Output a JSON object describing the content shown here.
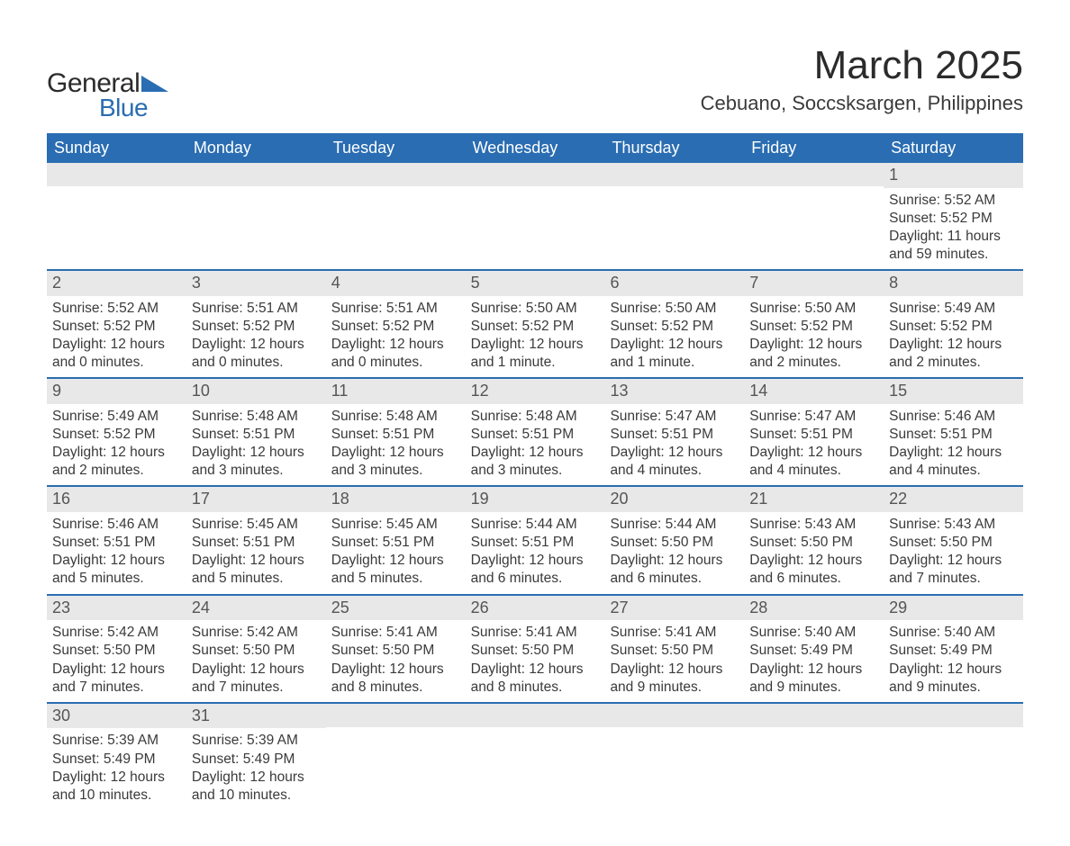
{
  "logo": {
    "text_general": "General",
    "text_blue": "Blue",
    "triangle_color": "#2a6db2"
  },
  "header": {
    "title": "March 2025",
    "subtitle": "Cebuano, Soccsksargen, Philippines"
  },
  "calendar": {
    "header_bg": "#2a6db2",
    "header_fg": "#ffffff",
    "row_border": "#2a6db2",
    "daynum_bg": "#e8e8e8",
    "text_color": "#3a3a3a",
    "day_labels": [
      "Sunday",
      "Monday",
      "Tuesday",
      "Wednesday",
      "Thursday",
      "Friday",
      "Saturday"
    ],
    "weeks": [
      [
        {
          "d": "",
          "sr": "",
          "ss": "",
          "dl": ""
        },
        {
          "d": "",
          "sr": "",
          "ss": "",
          "dl": ""
        },
        {
          "d": "",
          "sr": "",
          "ss": "",
          "dl": ""
        },
        {
          "d": "",
          "sr": "",
          "ss": "",
          "dl": ""
        },
        {
          "d": "",
          "sr": "",
          "ss": "",
          "dl": ""
        },
        {
          "d": "",
          "sr": "",
          "ss": "",
          "dl": ""
        },
        {
          "d": "1",
          "sr": "5:52 AM",
          "ss": "5:52 PM",
          "dl": "11 hours and 59 minutes."
        }
      ],
      [
        {
          "d": "2",
          "sr": "5:52 AM",
          "ss": "5:52 PM",
          "dl": "12 hours and 0 minutes."
        },
        {
          "d": "3",
          "sr": "5:51 AM",
          "ss": "5:52 PM",
          "dl": "12 hours and 0 minutes."
        },
        {
          "d": "4",
          "sr": "5:51 AM",
          "ss": "5:52 PM",
          "dl": "12 hours and 0 minutes."
        },
        {
          "d": "5",
          "sr": "5:50 AM",
          "ss": "5:52 PM",
          "dl": "12 hours and 1 minute."
        },
        {
          "d": "6",
          "sr": "5:50 AM",
          "ss": "5:52 PM",
          "dl": "12 hours and 1 minute."
        },
        {
          "d": "7",
          "sr": "5:50 AM",
          "ss": "5:52 PM",
          "dl": "12 hours and 2 minutes."
        },
        {
          "d": "8",
          "sr": "5:49 AM",
          "ss": "5:52 PM",
          "dl": "12 hours and 2 minutes."
        }
      ],
      [
        {
          "d": "9",
          "sr": "5:49 AM",
          "ss": "5:52 PM",
          "dl": "12 hours and 2 minutes."
        },
        {
          "d": "10",
          "sr": "5:48 AM",
          "ss": "5:51 PM",
          "dl": "12 hours and 3 minutes."
        },
        {
          "d": "11",
          "sr": "5:48 AM",
          "ss": "5:51 PM",
          "dl": "12 hours and 3 minutes."
        },
        {
          "d": "12",
          "sr": "5:48 AM",
          "ss": "5:51 PM",
          "dl": "12 hours and 3 minutes."
        },
        {
          "d": "13",
          "sr": "5:47 AM",
          "ss": "5:51 PM",
          "dl": "12 hours and 4 minutes."
        },
        {
          "d": "14",
          "sr": "5:47 AM",
          "ss": "5:51 PM",
          "dl": "12 hours and 4 minutes."
        },
        {
          "d": "15",
          "sr": "5:46 AM",
          "ss": "5:51 PM",
          "dl": "12 hours and 4 minutes."
        }
      ],
      [
        {
          "d": "16",
          "sr": "5:46 AM",
          "ss": "5:51 PM",
          "dl": "12 hours and 5 minutes."
        },
        {
          "d": "17",
          "sr": "5:45 AM",
          "ss": "5:51 PM",
          "dl": "12 hours and 5 minutes."
        },
        {
          "d": "18",
          "sr": "5:45 AM",
          "ss": "5:51 PM",
          "dl": "12 hours and 5 minutes."
        },
        {
          "d": "19",
          "sr": "5:44 AM",
          "ss": "5:51 PM",
          "dl": "12 hours and 6 minutes."
        },
        {
          "d": "20",
          "sr": "5:44 AM",
          "ss": "5:50 PM",
          "dl": "12 hours and 6 minutes."
        },
        {
          "d": "21",
          "sr": "5:43 AM",
          "ss": "5:50 PM",
          "dl": "12 hours and 6 minutes."
        },
        {
          "d": "22",
          "sr": "5:43 AM",
          "ss": "5:50 PM",
          "dl": "12 hours and 7 minutes."
        }
      ],
      [
        {
          "d": "23",
          "sr": "5:42 AM",
          "ss": "5:50 PM",
          "dl": "12 hours and 7 minutes."
        },
        {
          "d": "24",
          "sr": "5:42 AM",
          "ss": "5:50 PM",
          "dl": "12 hours and 7 minutes."
        },
        {
          "d": "25",
          "sr": "5:41 AM",
          "ss": "5:50 PM",
          "dl": "12 hours and 8 minutes."
        },
        {
          "d": "26",
          "sr": "5:41 AM",
          "ss": "5:50 PM",
          "dl": "12 hours and 8 minutes."
        },
        {
          "d": "27",
          "sr": "5:41 AM",
          "ss": "5:50 PM",
          "dl": "12 hours and 9 minutes."
        },
        {
          "d": "28",
          "sr": "5:40 AM",
          "ss": "5:49 PM",
          "dl": "12 hours and 9 minutes."
        },
        {
          "d": "29",
          "sr": "5:40 AM",
          "ss": "5:49 PM",
          "dl": "12 hours and 9 minutes."
        }
      ],
      [
        {
          "d": "30",
          "sr": "5:39 AM",
          "ss": "5:49 PM",
          "dl": "12 hours and 10 minutes."
        },
        {
          "d": "31",
          "sr": "5:39 AM",
          "ss": "5:49 PM",
          "dl": "12 hours and 10 minutes."
        },
        {
          "d": "",
          "sr": "",
          "ss": "",
          "dl": ""
        },
        {
          "d": "",
          "sr": "",
          "ss": "",
          "dl": ""
        },
        {
          "d": "",
          "sr": "",
          "ss": "",
          "dl": ""
        },
        {
          "d": "",
          "sr": "",
          "ss": "",
          "dl": ""
        },
        {
          "d": "",
          "sr": "",
          "ss": "",
          "dl": ""
        }
      ]
    ],
    "labels": {
      "sunrise": "Sunrise: ",
      "sunset": "Sunset: ",
      "daylight": "Daylight: "
    }
  }
}
